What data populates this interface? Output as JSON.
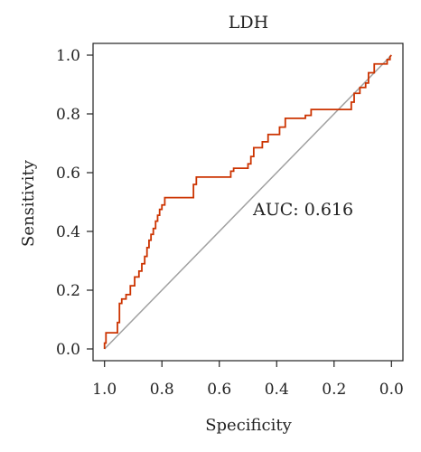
{
  "colors": {
    "roc_line": "#cc3300",
    "diagonal": "#a0a0a0",
    "axis": "#222222",
    "annotation": "#cc3300"
  },
  "chart_data": {
    "type": "line",
    "title": "LDH",
    "xlabel": "Specificity",
    "ylabel": "Sensitivity",
    "xlim": [
      1.04,
      -0.04
    ],
    "ylim": [
      -0.04,
      1.04
    ],
    "x_reversed": true,
    "x_ticks": [
      1.0,
      0.8,
      0.6,
      0.4,
      0.2,
      0.0
    ],
    "x_tick_labels": [
      "1.0",
      "0.8",
      "0.6",
      "0.4",
      "0.2",
      "0.0"
    ],
    "y_ticks": [
      0.0,
      0.2,
      0.4,
      0.6,
      0.8,
      1.0
    ],
    "y_tick_labels": [
      "0.0",
      "0.2",
      "0.4",
      "0.6",
      "0.8",
      "1.0"
    ],
    "grid": false,
    "reference_line": {
      "from": [
        1.0,
        0.0
      ],
      "to": [
        0.0,
        1.0
      ]
    },
    "annotation": "AUC: 0.616",
    "series": [
      {
        "x": [
          1.0,
          1.0,
          0.995,
          0.995,
          0.955,
          0.955,
          0.948,
          0.948,
          0.94,
          0.94,
          0.925,
          0.925,
          0.91,
          0.91,
          0.895,
          0.895,
          0.88,
          0.88,
          0.87,
          0.87,
          0.86,
          0.86,
          0.852,
          0.852,
          0.845,
          0.845,
          0.838,
          0.838,
          0.83,
          0.83,
          0.822,
          0.822,
          0.815,
          0.815,
          0.808,
          0.808,
          0.8,
          0.8,
          0.79,
          0.79,
          0.78,
          0.78,
          0.69,
          0.69,
          0.68,
          0.68,
          0.56,
          0.56,
          0.55,
          0.55,
          0.5,
          0.5,
          0.49,
          0.49,
          0.48,
          0.48,
          0.45,
          0.45,
          0.43,
          0.43,
          0.39,
          0.39,
          0.37,
          0.37,
          0.3,
          0.3,
          0.28,
          0.28,
          0.14,
          0.14,
          0.13,
          0.13,
          0.11,
          0.11,
          0.09,
          0.09,
          0.08,
          0.08,
          0.06,
          0.06,
          0.015,
          0.015,
          0.005,
          0.005,
          0.0
        ],
        "y": [
          0.0,
          0.02,
          0.02,
          0.055,
          0.055,
          0.09,
          0.09,
          0.155,
          0.155,
          0.17,
          0.17,
          0.185,
          0.185,
          0.215,
          0.215,
          0.245,
          0.245,
          0.265,
          0.265,
          0.29,
          0.29,
          0.315,
          0.315,
          0.345,
          0.345,
          0.37,
          0.37,
          0.39,
          0.39,
          0.41,
          0.41,
          0.435,
          0.435,
          0.455,
          0.455,
          0.475,
          0.475,
          0.49,
          0.49,
          0.515,
          0.515,
          0.515,
          0.515,
          0.56,
          0.56,
          0.585,
          0.585,
          0.605,
          0.605,
          0.615,
          0.615,
          0.63,
          0.63,
          0.655,
          0.655,
          0.685,
          0.685,
          0.705,
          0.705,
          0.73,
          0.73,
          0.755,
          0.755,
          0.785,
          0.785,
          0.795,
          0.795,
          0.815,
          0.815,
          0.84,
          0.84,
          0.87,
          0.87,
          0.89,
          0.89,
          0.905,
          0.905,
          0.94,
          0.94,
          0.97,
          0.97,
          0.985,
          0.985,
          0.995,
          1.0
        ]
      }
    ]
  }
}
